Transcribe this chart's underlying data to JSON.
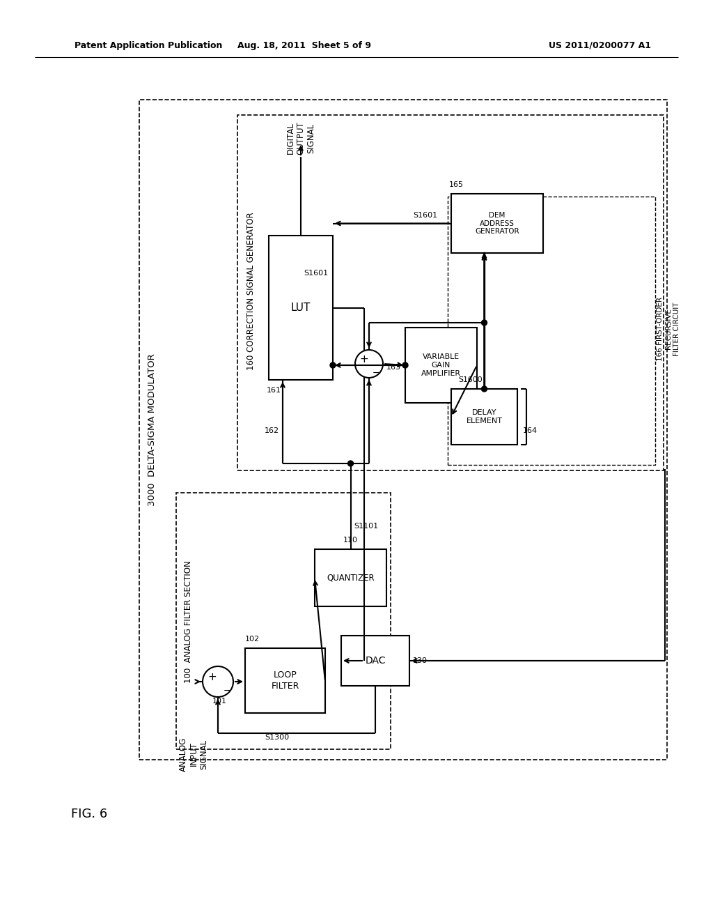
{
  "bg": "#ffffff",
  "hdr_left": "Patent Application Publication",
  "hdr_mid": "Aug. 18, 2011  Sheet 5 of 9",
  "hdr_right": "US 2011/0200077 A1",
  "fig_label": "FIG. 6",
  "lbl_delta": "3000  DELTA-SIGMA MODULATOR",
  "lbl_analog": "100  ANALOG FILTER SECTION",
  "lbl_correction": "160 CORRECTION SIGNAL GENERATOR",
  "lbl_recursive": "166 FIRST-ORDER\nRECURSIVE\nFILTER CIRCUIT",
  "lbl_digital_out": "DIGITAL\nOUTPUT\nSIGNAL",
  "lbl_analog_in": "ANALOG\nINPUT\nSIGNAL"
}
